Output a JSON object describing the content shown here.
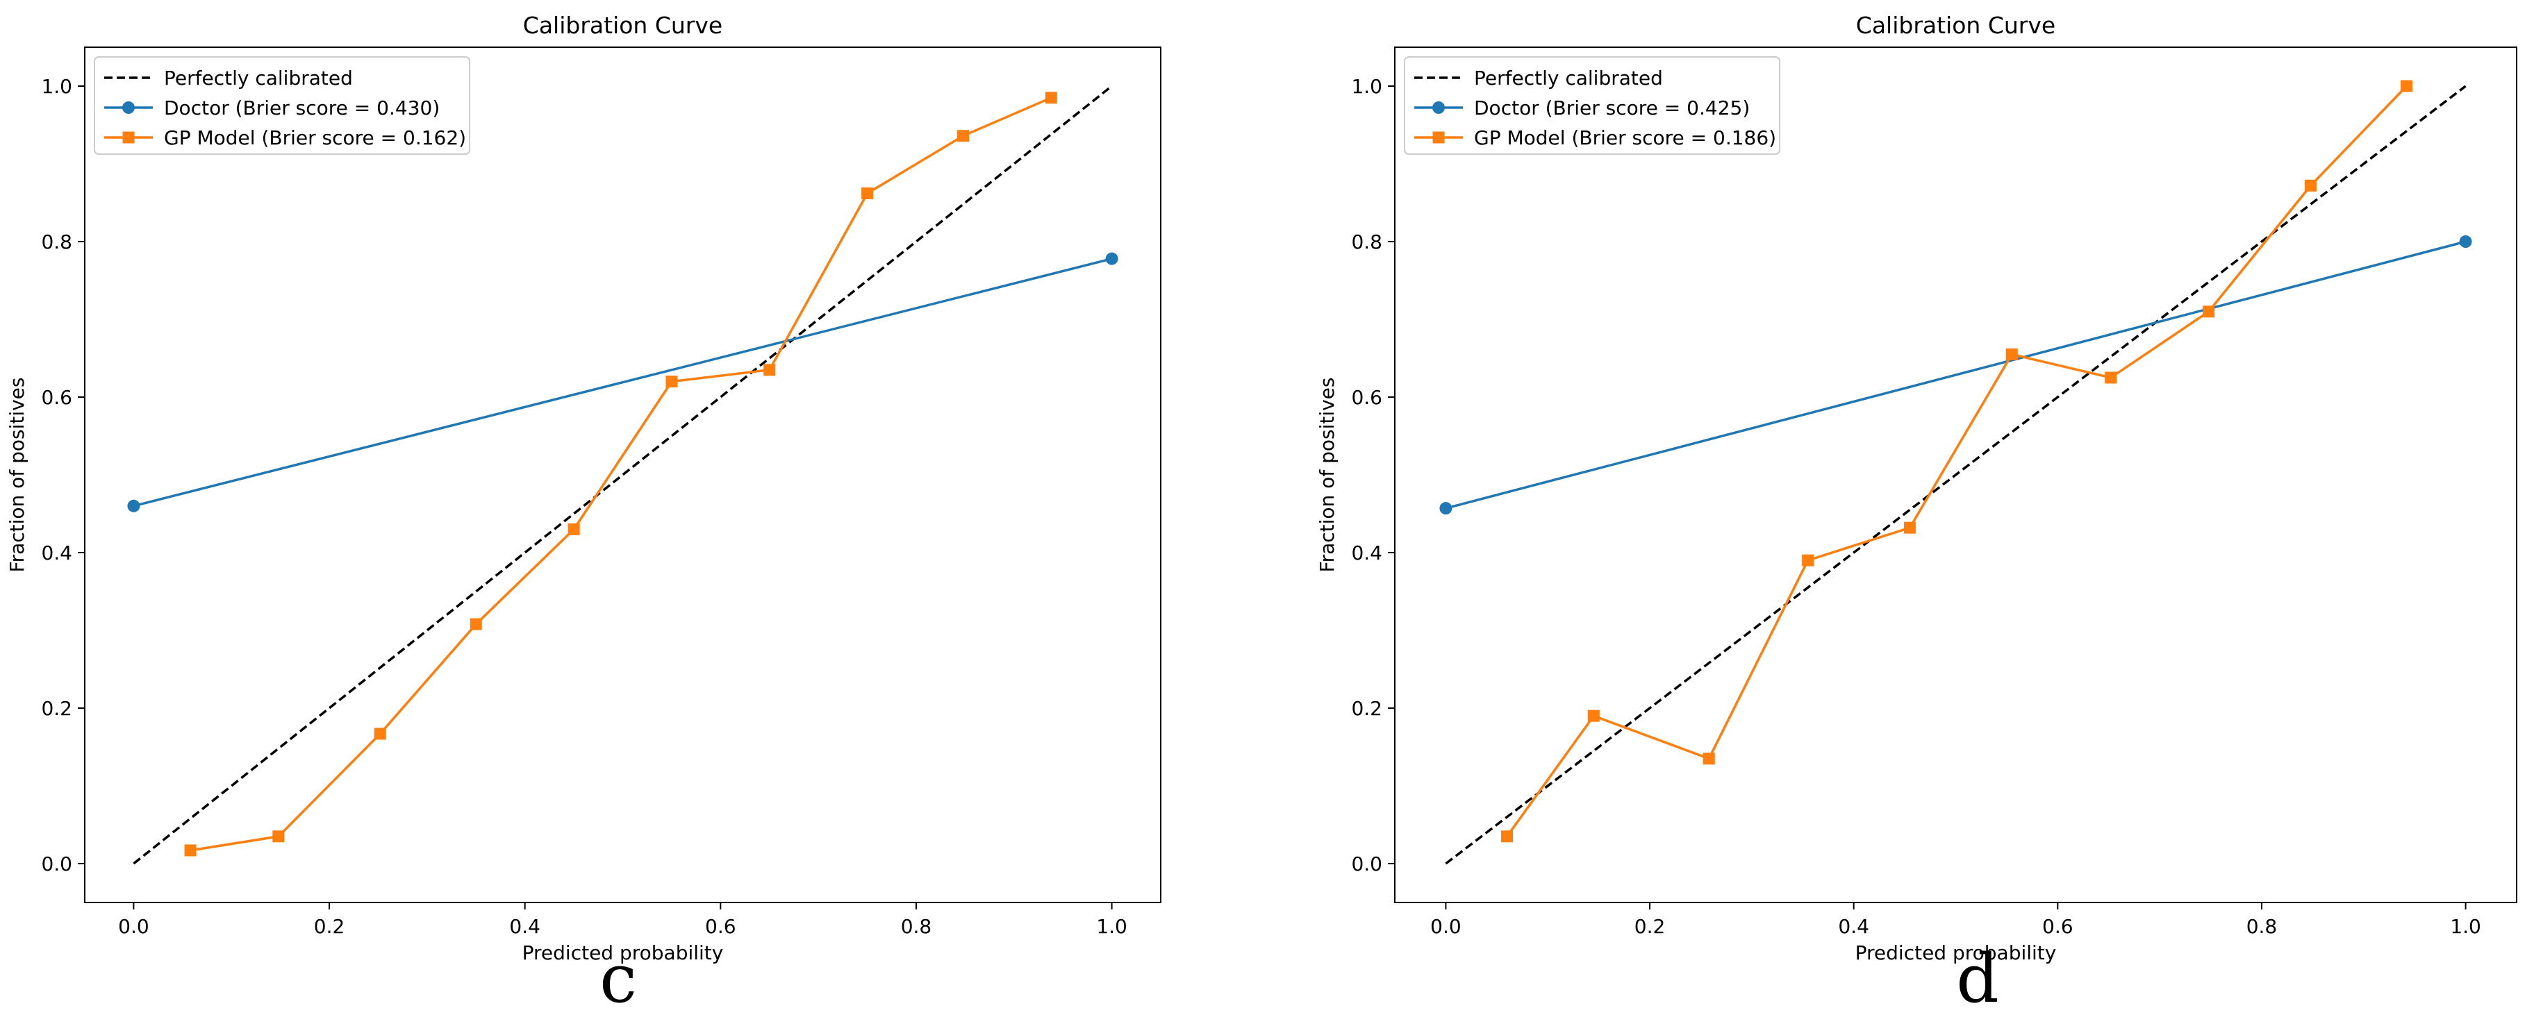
{
  "chart_data": [
    {
      "type": "line",
      "panel_label": "c",
      "title": "Calibration Curve",
      "xlabel": "Predicted probability",
      "ylabel": "Fraction of positives",
      "xlim": [
        -0.05,
        1.05
      ],
      "ylim": [
        -0.05,
        1.05
      ],
      "xticks": [
        0.0,
        0.2,
        0.4,
        0.6,
        0.8,
        1.0
      ],
      "yticks": [
        0.0,
        0.2,
        0.4,
        0.6,
        0.8,
        1.0
      ],
      "tick_labels": [
        "0.0",
        "0.2",
        "0.4",
        "0.6",
        "0.8",
        "1.0"
      ],
      "legend_position": "top-left",
      "series": [
        {
          "name": "Perfectly calibrated",
          "style": "dashed",
          "marker": "none",
          "color": "#000000",
          "x": [
            0.0,
            1.0
          ],
          "y": [
            0.0,
            1.0
          ]
        },
        {
          "name": "Doctor (Brier score = 0.430)",
          "style": "solid",
          "marker": "circle",
          "color": "#1f77b4",
          "x": [
            0.0,
            1.0
          ],
          "y": [
            0.46,
            0.778
          ]
        },
        {
          "name": "GP Model (Brier score = 0.162)",
          "style": "solid",
          "marker": "square",
          "color": "#ff7f0e",
          "x": [
            0.058,
            0.148,
            0.252,
            0.35,
            0.45,
            0.55,
            0.65,
            0.75,
            0.848,
            0.938
          ],
          "y": [
            0.017,
            0.035,
            0.167,
            0.308,
            0.43,
            0.62,
            0.635,
            0.862,
            0.936,
            0.985
          ]
        }
      ]
    },
    {
      "type": "line",
      "panel_label": "d",
      "title": "Calibration Curve",
      "xlabel": "Predicted probability",
      "ylabel": "Fraction of positives",
      "xlim": [
        -0.05,
        1.05
      ],
      "ylim": [
        -0.05,
        1.05
      ],
      "xticks": [
        0.0,
        0.2,
        0.4,
        0.6,
        0.8,
        1.0
      ],
      "yticks": [
        0.0,
        0.2,
        0.4,
        0.6,
        0.8,
        1.0
      ],
      "tick_labels": [
        "0.0",
        "0.2",
        "0.4",
        "0.6",
        "0.8",
        "1.0"
      ],
      "legend_position": "top-left",
      "series": [
        {
          "name": "Perfectly calibrated",
          "style": "dashed",
          "marker": "none",
          "color": "#000000",
          "x": [
            0.0,
            1.0
          ],
          "y": [
            0.0,
            1.0
          ]
        },
        {
          "name": "Doctor (Brier score = 0.425)",
          "style": "solid",
          "marker": "circle",
          "color": "#1f77b4",
          "x": [
            0.0,
            1.0
          ],
          "y": [
            0.457,
            0.8
          ]
        },
        {
          "name": "GP Model (Brier score = 0.186)",
          "style": "solid",
          "marker": "square",
          "color": "#ff7f0e",
          "x": [
            0.06,
            0.145,
            0.258,
            0.355,
            0.455,
            0.555,
            0.652,
            0.748,
            0.848,
            0.942
          ],
          "y": [
            0.035,
            0.19,
            0.135,
            0.39,
            0.432,
            0.655,
            0.625,
            0.71,
            0.872,
            1.0
          ]
        }
      ]
    }
  ]
}
